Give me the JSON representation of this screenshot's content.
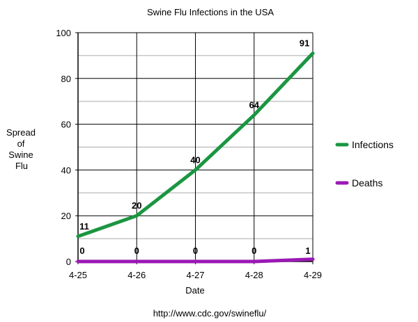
{
  "chart_data": {
    "type": "line",
    "title": "Swine Flu Infections in the USA",
    "xlabel": "Date",
    "ylabel_lines": [
      "Spread",
      "of",
      "Swine",
      "Flu"
    ],
    "categories": [
      "4-25",
      "4-26",
      "4-27",
      "4-28",
      "4-29"
    ],
    "ylim": [
      0,
      100
    ],
    "y_ticks": [
      0,
      20,
      40,
      60,
      80,
      100
    ],
    "grid": true,
    "legend_position": "right",
    "series": [
      {
        "name": "Infections",
        "values": [
          11,
          20,
          40,
          64,
          91
        ],
        "color": "#1a9641"
      },
      {
        "name": "Deaths",
        "values": [
          0,
          0,
          0,
          0,
          1
        ],
        "color": "#9b19b4"
      }
    ],
    "source": "http://www.cdc.gov/swineflu/"
  }
}
